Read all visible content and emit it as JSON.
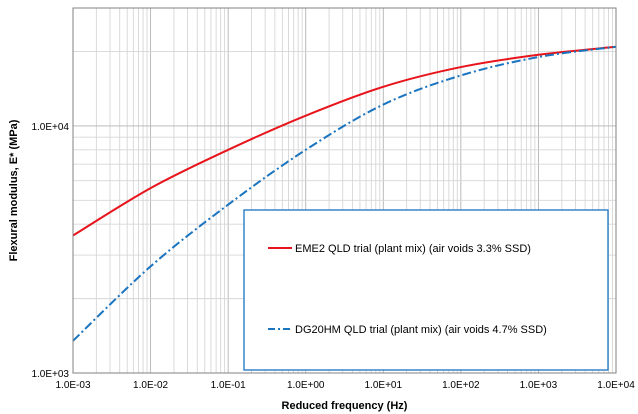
{
  "chart_data": {
    "type": "line",
    "xlabel": "Reduced frequency (Hz)",
    "ylabel": "Flexural modulus, E* (MPa)",
    "x_scale": "log",
    "y_scale": "log",
    "xlim": [
      0.001,
      10000
    ],
    "ylim": [
      1000,
      30000
    ],
    "x_tick_labels": [
      "1.0E-03",
      "1.0E-02",
      "1.0E-01",
      "1.0E+00",
      "1.0E+01",
      "1.0E+02",
      "1.0E+03",
      "1.0E+04"
    ],
    "y_tick_labels": [
      "1.0E+03",
      "1.0E+04"
    ],
    "grid": true,
    "legend_position": "lower-right",
    "series": [
      {
        "name": "EME2 QLD trial (plant mix) (air voids 3.3% SSD)",
        "color": "#e8141c",
        "style": "solid",
        "x": [
          0.001,
          0.01,
          0.1,
          1,
          10,
          100,
          1000,
          10000
        ],
        "y": [
          3600,
          5600,
          8000,
          11000,
          14400,
          17300,
          19400,
          20900
        ]
      },
      {
        "name": "DG20HM QLD trial (plant mix) (air voids 4.7% SSD)",
        "color": "#1a74bf",
        "style": "dash-dot",
        "x": [
          0.001,
          0.01,
          0.1,
          1,
          10,
          100,
          1000,
          10000
        ],
        "y": [
          1350,
          2700,
          4800,
          8000,
          12200,
          16000,
          19000,
          20900
        ]
      }
    ]
  }
}
